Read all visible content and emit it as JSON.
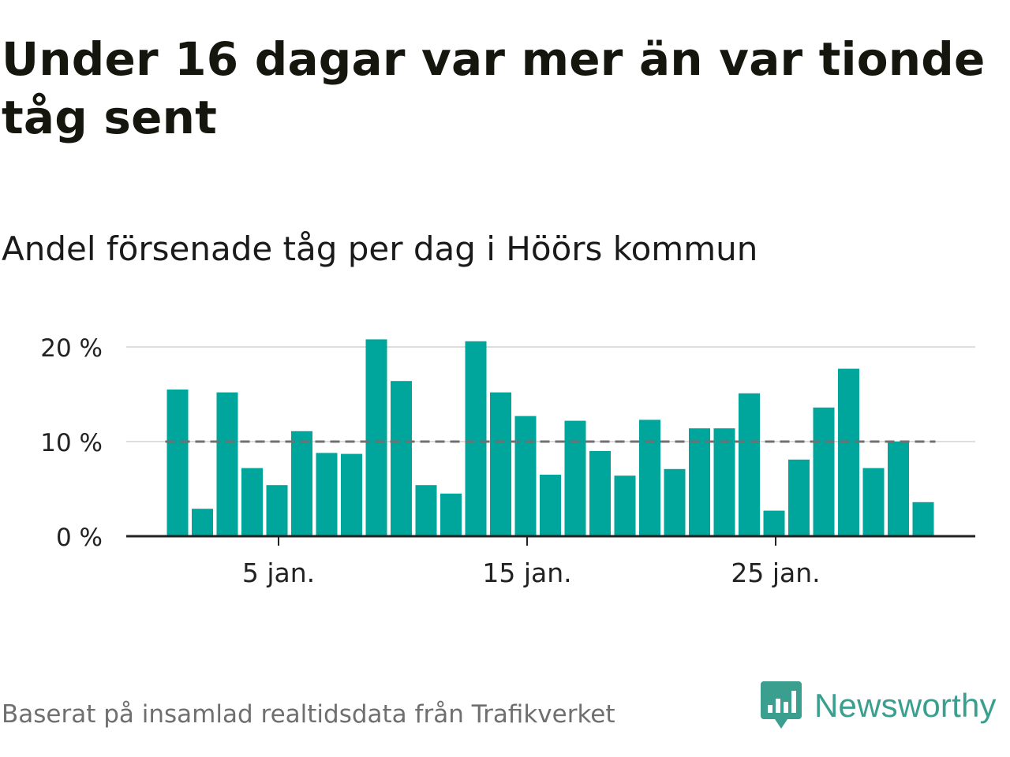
{
  "header": {
    "title": "Under 16 dagar var mer än var tionde tåg sent",
    "subtitle": "Andel försenade tåg per dag i Höörs kommun"
  },
  "footer": {
    "source": "Baserat på insamlad realtidsdata från Trafikverket",
    "brand": "Newsworthy",
    "brand_icon": "bar-chart-speech-bubble-icon"
  },
  "colors": {
    "bar": "#00a59b",
    "reference_line": "#707070",
    "gridline": "#dddddd",
    "axis": "#222222",
    "brand": "#3a9f8e"
  },
  "chart_data": {
    "type": "bar",
    "x_unit": "day",
    "categories": [
      "1 jan.",
      "2 jan.",
      "3 jan.",
      "4 jan.",
      "5 jan.",
      "6 jan.",
      "7 jan.",
      "8 jan.",
      "9 jan.",
      "10 jan.",
      "11 jan.",
      "12 jan.",
      "13 jan.",
      "14 jan.",
      "15 jan.",
      "16 jan.",
      "17 jan.",
      "18 jan.",
      "19 jan.",
      "20 jan.",
      "21 jan.",
      "22 jan.",
      "23 jan.",
      "24 jan.",
      "25 jan.",
      "26 jan.",
      "27 jan.",
      "28 jan.",
      "29 jan.",
      "30 jan.",
      "31 jan."
    ],
    "values": [
      15.5,
      2.9,
      15.2,
      7.2,
      5.4,
      11.1,
      8.8,
      8.7,
      20.8,
      16.4,
      5.4,
      4.5,
      20.6,
      15.2,
      12.7,
      6.5,
      12.2,
      9.0,
      6.4,
      12.3,
      7.1,
      11.4,
      11.4,
      15.1,
      2.7,
      8.1,
      13.6,
      17.7,
      7.2,
      10.0,
      3.6
    ],
    "value_unit": "%",
    "reference_line": 10,
    "ylim": [
      0,
      21
    ],
    "y_ticks": [
      0,
      10,
      20
    ],
    "y_tick_labels": [
      "0 %",
      "10 %",
      "20 %"
    ],
    "x_ticks": [
      5,
      15,
      25
    ],
    "x_tick_labels": [
      "5 jan.",
      "15 jan.",
      "25 jan."
    ],
    "grid": true,
    "legend": "none",
    "xlabel": "",
    "ylabel": ""
  }
}
